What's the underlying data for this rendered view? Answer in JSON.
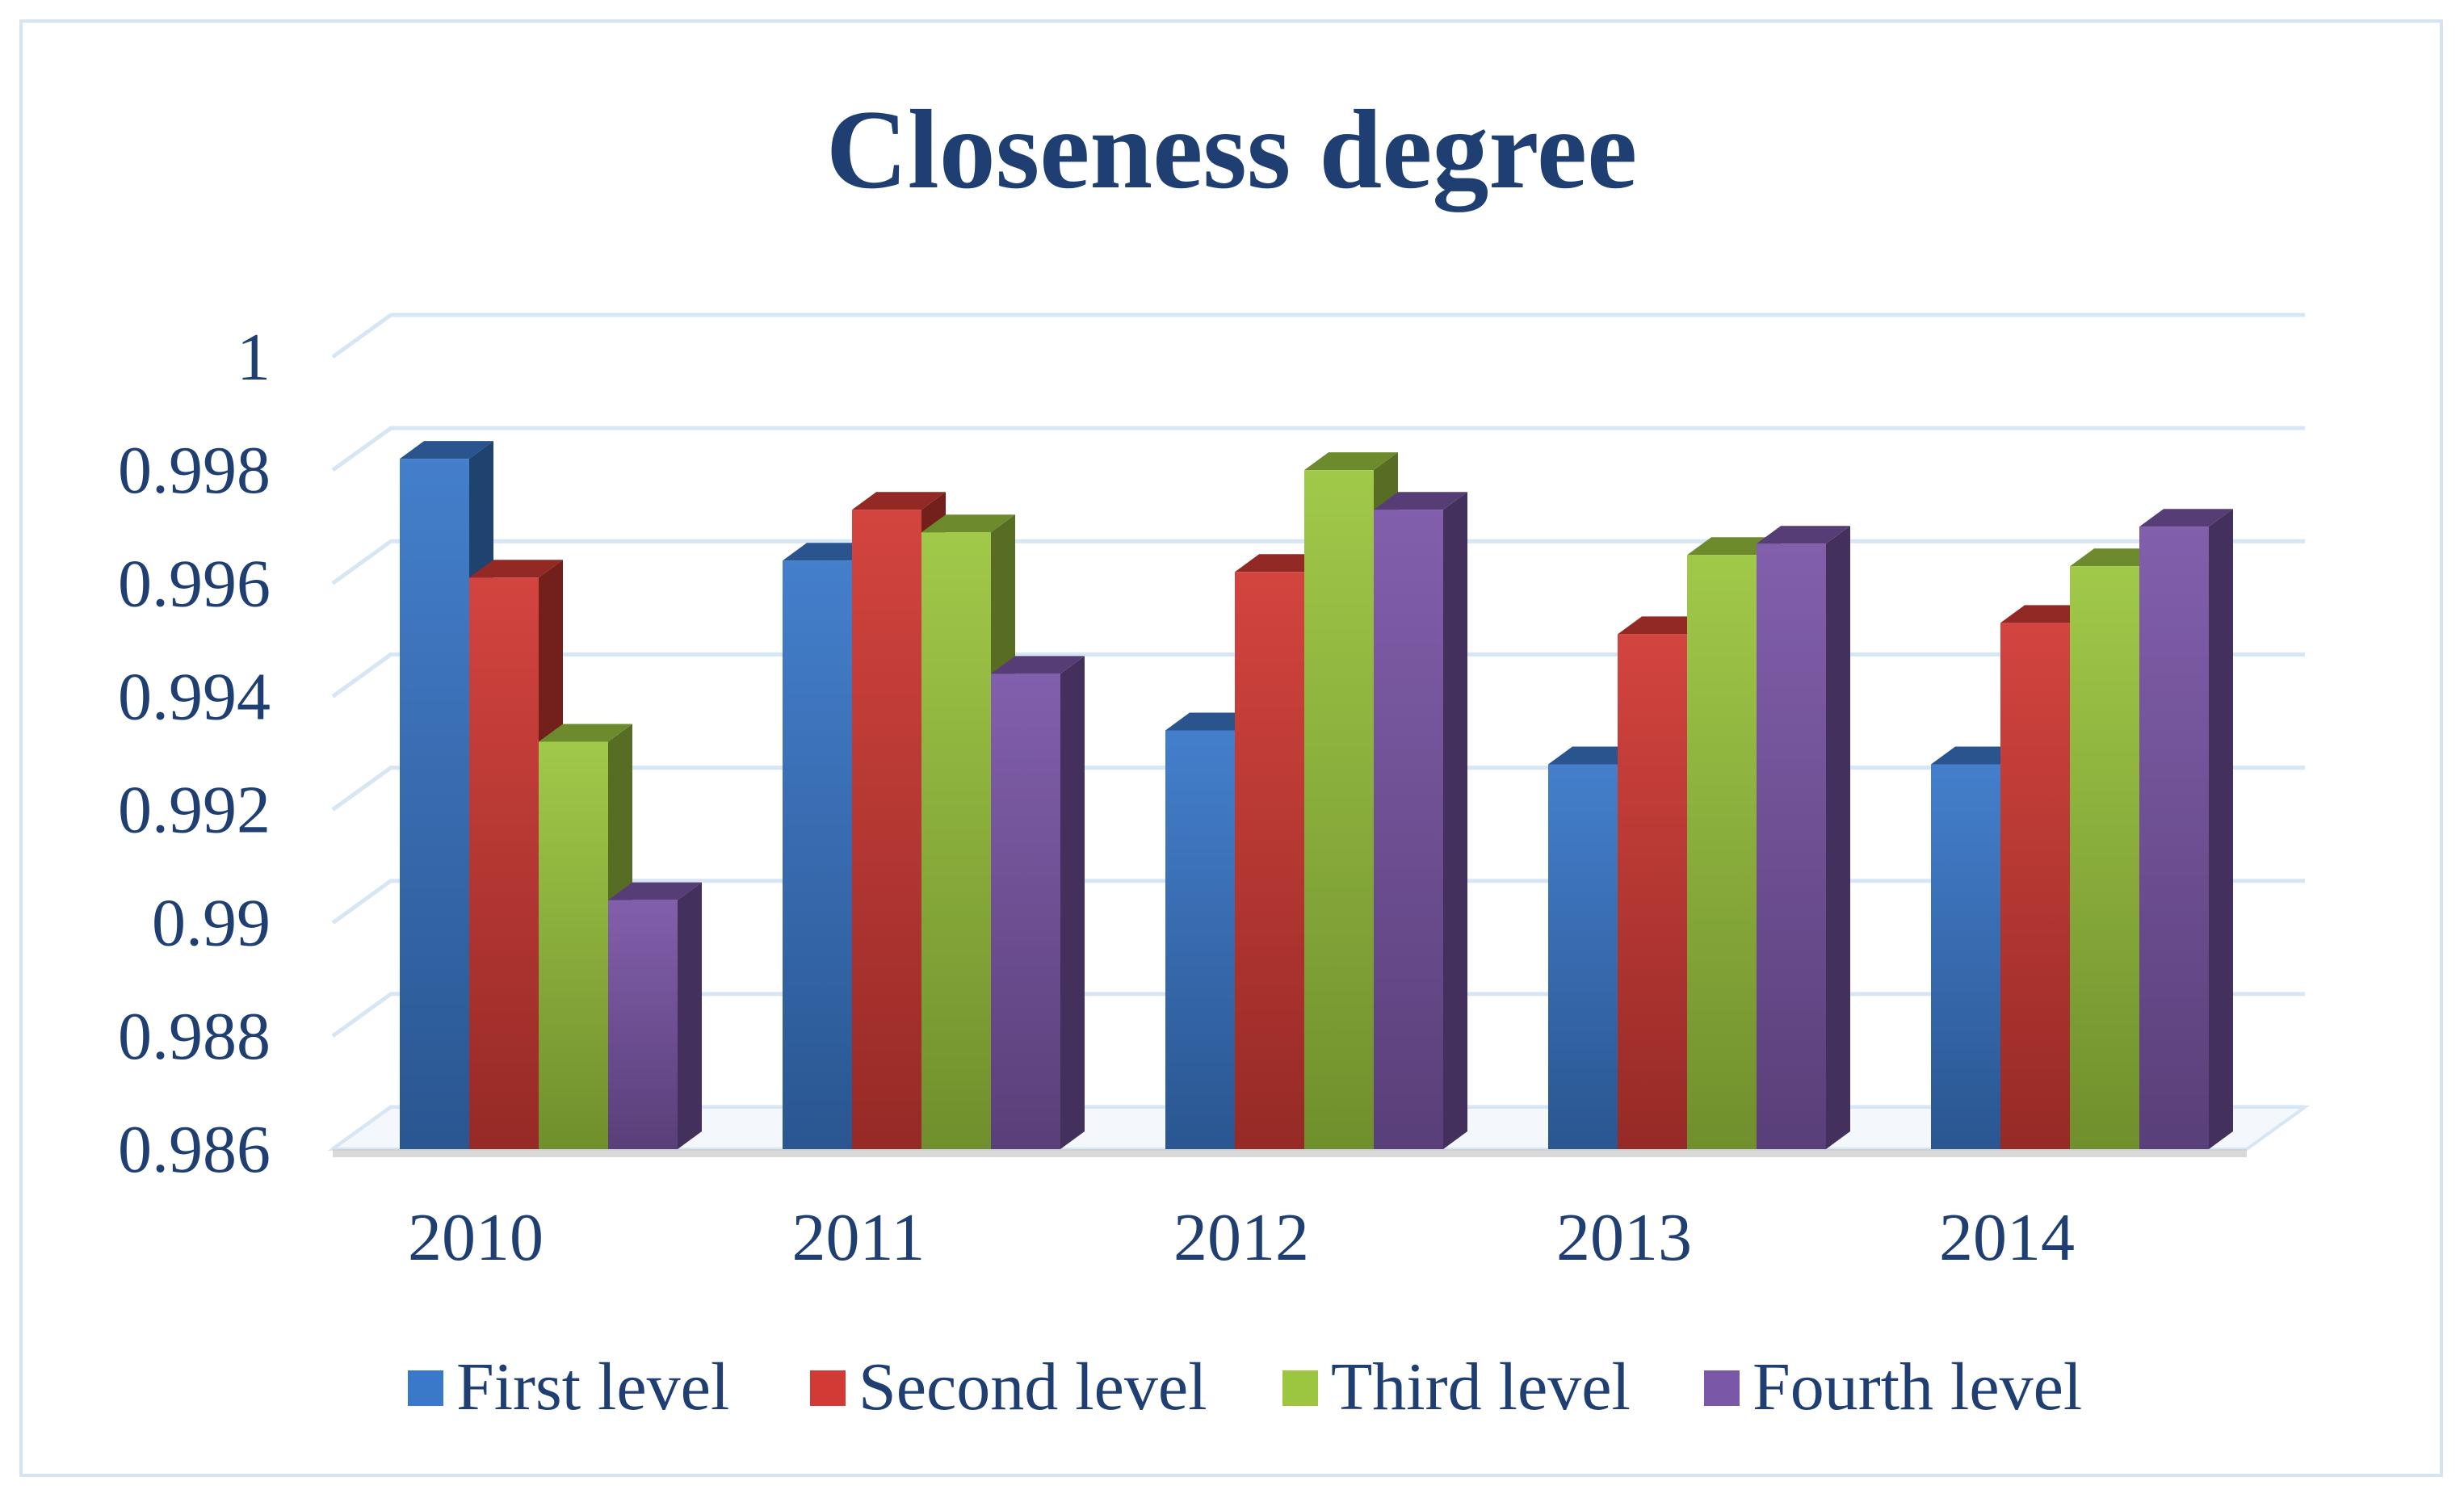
{
  "chart_data": {
    "type": "bar",
    "title": "Closeness degree",
    "xlabel": "",
    "ylabel": "",
    "categories": [
      "2010",
      "2011",
      "2012",
      "2013",
      "2014"
    ],
    "yticks": [
      "0.986",
      "0.988",
      "0.99",
      "0.992",
      "0.994",
      "0.996",
      "0.998",
      "1"
    ],
    "ylim": [
      0.986,
      1
    ],
    "grid": true,
    "legend_position": "bottom",
    "series": [
      {
        "name": "First level",
        "color": "#3a78c9",
        "values": [
          0.9982,
          0.9964,
          0.9934,
          0.9928,
          0.9928
        ]
      },
      {
        "name": "Second level",
        "color": "#d13a35",
        "values": [
          0.9961,
          0.9973,
          0.9962,
          0.9951,
          0.9953
        ]
      },
      {
        "name": "Third level",
        "color": "#9cc63f",
        "values": [
          0.9932,
          0.9969,
          0.998,
          0.9965,
          0.9963
        ]
      },
      {
        "name": "Fourth level",
        "color": "#7b57a8",
        "values": [
          0.9904,
          0.9944,
          0.9973,
          0.9967,
          0.997
        ]
      }
    ]
  }
}
